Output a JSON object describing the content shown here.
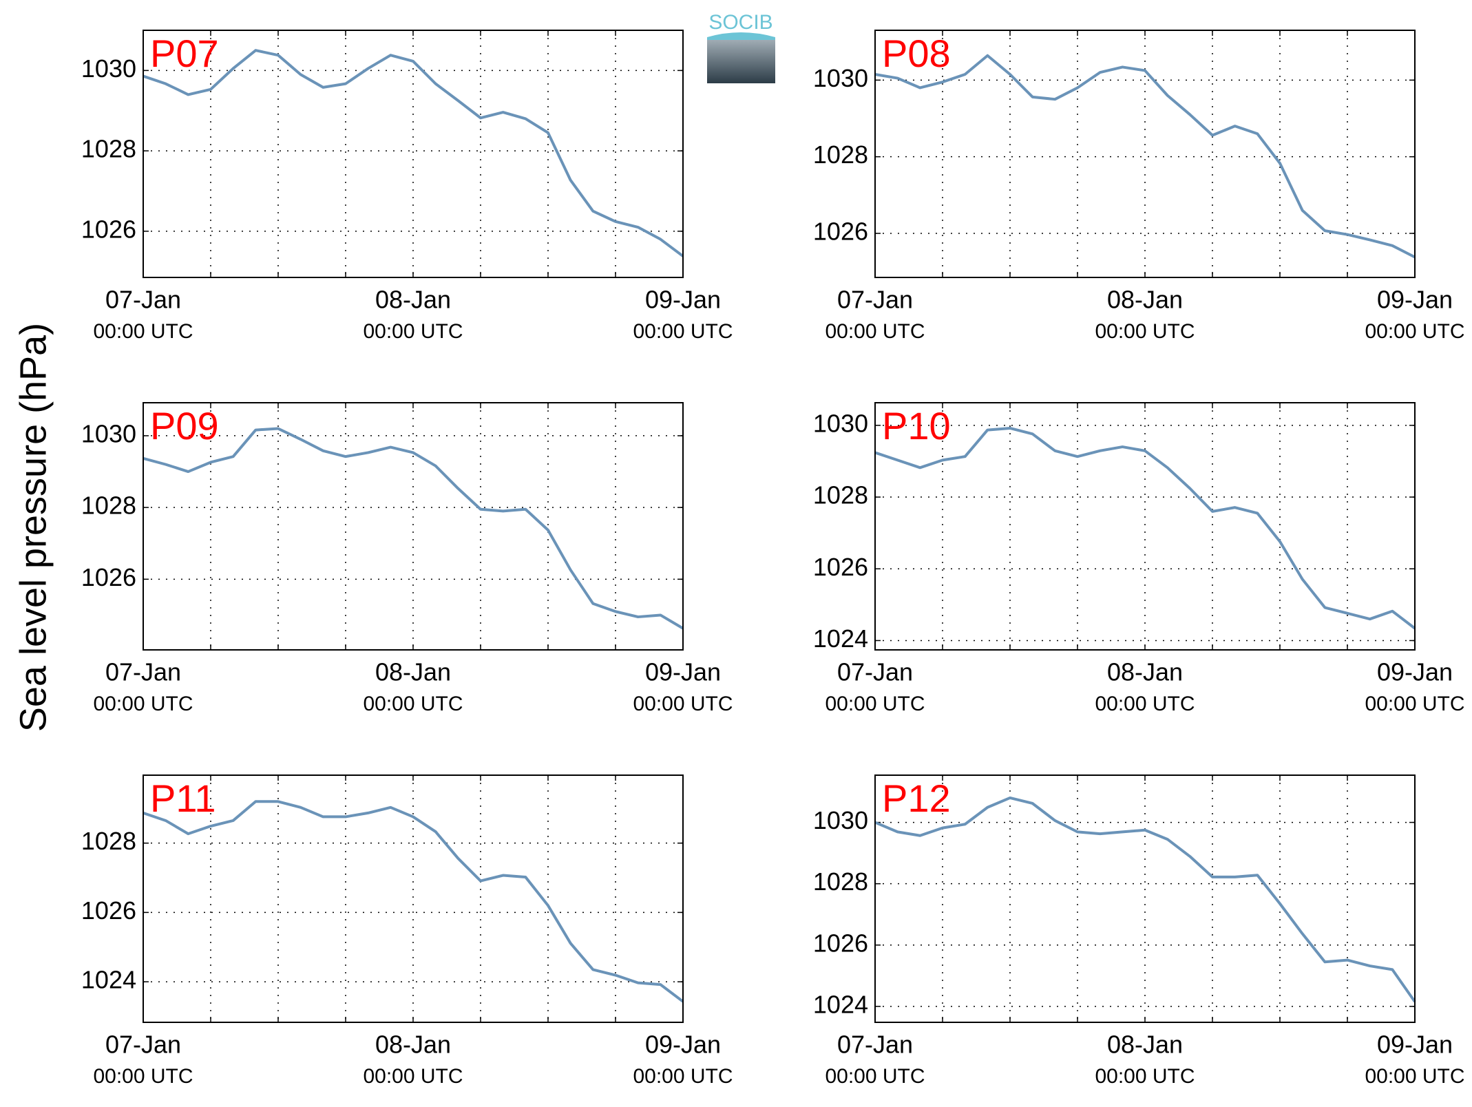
{
  "ylabel": "Sea level pressure (hPa)",
  "logo": "SOCIB",
  "chart_data": [
    {
      "type": "line",
      "annotation": "P07",
      "color": "#6a93b8",
      "grid": true,
      "x": [
        0,
        2,
        4,
        6,
        8,
        10,
        12,
        14,
        16,
        18,
        20,
        22,
        24,
        26,
        28,
        30,
        32,
        34,
        36,
        38,
        40,
        42,
        44,
        46,
        48
      ],
      "values": [
        1029.86,
        1029.67,
        1029.4,
        1029.53,
        1030.05,
        1030.5,
        1030.38,
        1029.9,
        1029.58,
        1029.67,
        1030.05,
        1030.38,
        1030.23,
        1029.67,
        1029.25,
        1028.82,
        1028.96,
        1028.8,
        1028.45,
        1027.27,
        1026.5,
        1026.24,
        1026.1,
        1025.8,
        1025.38
      ],
      "xlim": [
        0,
        48
      ],
      "ylim": [
        1024.85,
        1031.0
      ],
      "yticks": [
        1026,
        1028,
        1030
      ],
      "xticks": [
        {
          "value": 0,
          "label": [
            "07-Jan",
            "00:00 UTC"
          ]
        },
        {
          "value": 6,
          "label": null
        },
        {
          "value": 12,
          "label": null
        },
        {
          "value": 18,
          "label": null
        },
        {
          "value": 24,
          "label": [
            "08-Jan",
            "00:00 UTC"
          ]
        },
        {
          "value": 30,
          "label": null
        },
        {
          "value": 36,
          "label": null
        },
        {
          "value": 42,
          "label": null
        },
        {
          "value": 48,
          "label": [
            "09-Jan",
            "00:00 UTC"
          ]
        }
      ]
    },
    {
      "type": "line",
      "annotation": "P08",
      "color": "#6a93b8",
      "grid": true,
      "x": [
        0,
        2,
        4,
        6,
        8,
        10,
        12,
        14,
        16,
        18,
        20,
        22,
        24,
        26,
        28,
        30,
        32,
        34,
        36,
        38,
        40,
        42,
        44,
        46,
        48
      ],
      "values": [
        1030.15,
        1030.05,
        1029.8,
        1029.95,
        1030.15,
        1030.64,
        1030.15,
        1029.56,
        1029.5,
        1029.8,
        1030.2,
        1030.34,
        1030.25,
        1029.6,
        1029.1,
        1028.56,
        1028.8,
        1028.6,
        1027.83,
        1026.6,
        1026.07,
        1025.97,
        1025.83,
        1025.68,
        1025.38
      ],
      "xlim": [
        0,
        48
      ],
      "ylim": [
        1024.85,
        1031.3
      ],
      "yticks": [
        1026,
        1028,
        1030
      ],
      "xticks": [
        {
          "value": 0,
          "label": [
            "07-Jan",
            "00:00 UTC"
          ]
        },
        {
          "value": 6,
          "label": null
        },
        {
          "value": 12,
          "label": null
        },
        {
          "value": 18,
          "label": null
        },
        {
          "value": 24,
          "label": [
            "08-Jan",
            "00:00 UTC"
          ]
        },
        {
          "value": 30,
          "label": null
        },
        {
          "value": 36,
          "label": null
        },
        {
          "value": 42,
          "label": null
        },
        {
          "value": 48,
          "label": [
            "09-Jan",
            "00:00 UTC"
          ]
        }
      ]
    },
    {
      "type": "line",
      "annotation": "P09",
      "color": "#6a93b8",
      "grid": true,
      "x": [
        0,
        2,
        4,
        6,
        8,
        10,
        12,
        14,
        16,
        18,
        20,
        22,
        24,
        26,
        28,
        30,
        32,
        34,
        36,
        38,
        40,
        42,
        44,
        46,
        48
      ],
      "values": [
        1029.37,
        1029.2,
        1029.0,
        1029.26,
        1029.42,
        1030.16,
        1030.2,
        1029.9,
        1029.58,
        1029.42,
        1029.53,
        1029.68,
        1029.53,
        1029.16,
        1028.53,
        1027.95,
        1027.9,
        1027.95,
        1027.37,
        1026.26,
        1025.32,
        1025.1,
        1024.95,
        1025.0,
        1024.63
      ],
      "xlim": [
        0,
        48
      ],
      "ylim": [
        1024.03,
        1030.92
      ],
      "yticks": [
        1026,
        1028,
        1030
      ],
      "xticks": [
        {
          "value": 0,
          "label": [
            "07-Jan",
            "00:00 UTC"
          ]
        },
        {
          "value": 6,
          "label": null
        },
        {
          "value": 12,
          "label": null
        },
        {
          "value": 18,
          "label": null
        },
        {
          "value": 24,
          "label": [
            "08-Jan",
            "00:00 UTC"
          ]
        },
        {
          "value": 30,
          "label": null
        },
        {
          "value": 36,
          "label": null
        },
        {
          "value": 42,
          "label": null
        },
        {
          "value": 48,
          "label": [
            "09-Jan",
            "00:00 UTC"
          ]
        }
      ]
    },
    {
      "type": "line",
      "annotation": "P10",
      "color": "#6a93b8",
      "grid": true,
      "x": [
        0,
        2,
        4,
        6,
        8,
        10,
        12,
        14,
        16,
        18,
        20,
        22,
        24,
        26,
        28,
        30,
        32,
        34,
        36,
        38,
        40,
        42,
        44,
        46,
        48
      ],
      "values": [
        1029.24,
        1029.03,
        1028.82,
        1029.03,
        1029.13,
        1029.87,
        1029.92,
        1029.76,
        1029.29,
        1029.13,
        1029.29,
        1029.4,
        1029.29,
        1028.82,
        1028.24,
        1027.6,
        1027.71,
        1027.55,
        1026.76,
        1025.71,
        1024.92,
        1024.76,
        1024.6,
        1024.82,
        1024.34
      ],
      "xlim": [
        0,
        48
      ],
      "ylim": [
        1023.74,
        1030.63
      ],
      "yticks": [
        1024,
        1026,
        1028,
        1030
      ],
      "xticks": [
        {
          "value": 0,
          "label": [
            "07-Jan",
            "00:00 UTC"
          ]
        },
        {
          "value": 6,
          "label": null
        },
        {
          "value": 12,
          "label": null
        },
        {
          "value": 18,
          "label": null
        },
        {
          "value": 24,
          "label": [
            "08-Jan",
            "00:00 UTC"
          ]
        },
        {
          "value": 30,
          "label": null
        },
        {
          "value": 36,
          "label": null
        },
        {
          "value": 42,
          "label": null
        },
        {
          "value": 48,
          "label": [
            "09-Jan",
            "00:00 UTC"
          ]
        }
      ]
    },
    {
      "type": "line",
      "annotation": "P11",
      "color": "#6a93b8",
      "grid": true,
      "x": [
        0,
        2,
        4,
        6,
        8,
        10,
        12,
        14,
        16,
        18,
        20,
        22,
        24,
        26,
        28,
        30,
        32,
        34,
        36,
        38,
        40,
        42,
        44,
        46,
        48
      ],
      "values": [
        1028.87,
        1028.65,
        1028.27,
        1028.49,
        1028.65,
        1029.2,
        1029.2,
        1029.03,
        1028.76,
        1028.76,
        1028.87,
        1029.03,
        1028.76,
        1028.33,
        1027.56,
        1026.91,
        1027.07,
        1027.02,
        1026.2,
        1025.11,
        1024.35,
        1024.19,
        1023.97,
        1023.92,
        1023.43
      ],
      "xlim": [
        0,
        48
      ],
      "ylim": [
        1022.83,
        1029.96
      ],
      "yticks": [
        1024,
        1026,
        1028
      ],
      "xticks": [
        {
          "value": 0,
          "label": [
            "07-Jan",
            "00:00 UTC"
          ]
        },
        {
          "value": 6,
          "label": null
        },
        {
          "value": 12,
          "label": null
        },
        {
          "value": 18,
          "label": null
        },
        {
          "value": 24,
          "label": [
            "08-Jan",
            "00:00 UTC"
          ]
        },
        {
          "value": 30,
          "label": null
        },
        {
          "value": 36,
          "label": null
        },
        {
          "value": 42,
          "label": null
        },
        {
          "value": 48,
          "label": [
            "09-Jan",
            "00:00 UTC"
          ]
        }
      ]
    },
    {
      "type": "line",
      "annotation": "P12",
      "color": "#6a93b8",
      "grid": true,
      "x": [
        0,
        2,
        4,
        6,
        8,
        10,
        12,
        14,
        16,
        18,
        20,
        22,
        24,
        26,
        28,
        30,
        32,
        34,
        36,
        38,
        40,
        42,
        44,
        46,
        48
      ],
      "values": [
        1030.0,
        1029.69,
        1029.57,
        1029.82,
        1029.94,
        1030.49,
        1030.8,
        1030.62,
        1030.06,
        1029.69,
        1029.63,
        1029.69,
        1029.75,
        1029.45,
        1028.89,
        1028.22,
        1028.22,
        1028.28,
        1027.35,
        1026.37,
        1025.45,
        1025.51,
        1025.32,
        1025.2,
        1024.15
      ],
      "xlim": [
        0,
        48
      ],
      "ylim": [
        1023.48,
        1031.54
      ],
      "yticks": [
        1024,
        1026,
        1028,
        1030
      ],
      "xticks": [
        {
          "value": 0,
          "label": [
            "07-Jan",
            "00:00 UTC"
          ]
        },
        {
          "value": 6,
          "label": null
        },
        {
          "value": 12,
          "label": null
        },
        {
          "value": 18,
          "label": null
        },
        {
          "value": 24,
          "label": [
            "08-Jan",
            "00:00 UTC"
          ]
        },
        {
          "value": 30,
          "label": null
        },
        {
          "value": 36,
          "label": null
        },
        {
          "value": 42,
          "label": null
        },
        {
          "value": 48,
          "label": [
            "09-Jan",
            "00:00 UTC"
          ]
        }
      ]
    }
  ]
}
